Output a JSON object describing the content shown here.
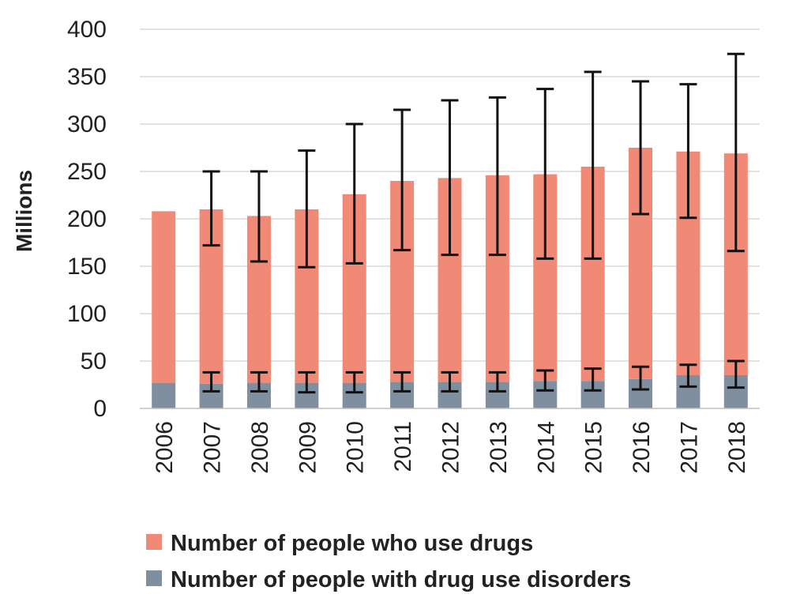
{
  "chart_data": {
    "type": "bar",
    "stacked": true,
    "ylabel": "Millions",
    "ylim": [
      0,
      400
    ],
    "yticks": [
      0,
      50,
      100,
      150,
      200,
      250,
      300,
      350,
      400
    ],
    "grid": true,
    "legend_position": "bottom",
    "categories": [
      "2006",
      "2007",
      "2008",
      "2009",
      "2010",
      "2011",
      "2012",
      "2013",
      "2014",
      "2015",
      "2016",
      "2017",
      "2018"
    ],
    "series": [
      {
        "name": "Number of people with drug use disorders",
        "color": "#7f8fa0",
        "values": [
          27,
          26,
          27,
          27,
          27,
          28,
          28,
          28,
          29,
          29,
          31,
          35,
          35
        ],
        "error_low": [
          null,
          18,
          18,
          17,
          17,
          18,
          18,
          18,
          19,
          19,
          20,
          23,
          22
        ],
        "error_high": [
          null,
          38,
          38,
          38,
          38,
          38,
          38,
          38,
          40,
          42,
          44,
          46,
          50
        ]
      },
      {
        "name": "Number of people who use drugs",
        "color": "#f08a76",
        "values": [
          208,
          210,
          203,
          210,
          226,
          240,
          243,
          246,
          247,
          255,
          275,
          271,
          269
        ],
        "error_low": [
          null,
          172,
          155,
          149,
          153,
          167,
          162,
          162,
          158,
          158,
          205,
          201,
          166
        ],
        "error_high": [
          null,
          250,
          250,
          272,
          300,
          315,
          325,
          328,
          337,
          355,
          345,
          342,
          374
        ]
      }
    ]
  }
}
